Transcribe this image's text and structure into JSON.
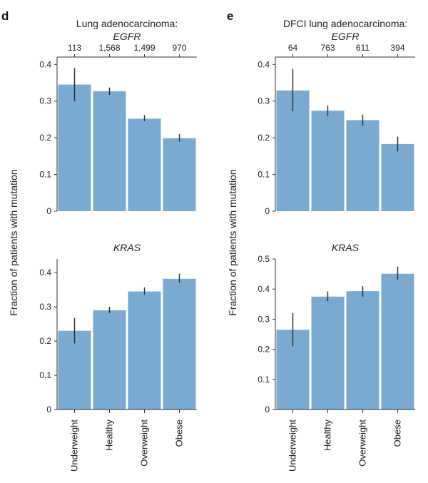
{
  "colors": {
    "bar": "#7aaad0",
    "error_bar": "#2b2b2b",
    "axis": "#333333"
  },
  "figure": {
    "categories": [
      "Underweight",
      "Healthy",
      "Overweight",
      "Obese"
    ],
    "ylabel": "Fraction of patients with mutation"
  },
  "chart_data": [
    {
      "panel": "d",
      "type": "bar",
      "title": "Lung adenocarcinoma:",
      "subtitle": "EGFR",
      "top_axis_counts": [
        "113",
        "1,568",
        "1,499",
        "970"
      ],
      "categories": [
        "Underweight",
        "Healthy",
        "Overweight",
        "Obese"
      ],
      "values": [
        0.345,
        0.327,
        0.252,
        0.199
      ],
      "error_low": [
        0.3,
        0.317,
        0.245,
        0.19
      ],
      "error_high": [
        0.39,
        0.337,
        0.262,
        0.21
      ],
      "ylim": [
        0,
        0.42
      ],
      "yticks": [
        "0",
        "0.1",
        "0.2",
        "0.3",
        "0.4"
      ],
      "ytick_values": [
        0,
        0.1,
        0.2,
        0.3,
        0.4
      ]
    },
    {
      "panel": "e",
      "type": "bar",
      "title": "DFCI lung adenocarcinoma:",
      "subtitle": "EGFR",
      "top_axis_counts": [
        "64",
        "763",
        "611",
        "394"
      ],
      "categories": [
        "Underweight",
        "Healthy",
        "Overweight",
        "Obese"
      ],
      "values": [
        0.329,
        0.274,
        0.248,
        0.183
      ],
      "error_low": [
        0.272,
        0.26,
        0.233,
        0.163
      ],
      "error_high": [
        0.388,
        0.288,
        0.263,
        0.203
      ],
      "ylim": [
        0,
        0.42
      ],
      "yticks": [
        "0",
        "0.1",
        "0.2",
        "0.3",
        "0.4"
      ],
      "ytick_values": [
        0,
        0.1,
        0.2,
        0.3,
        0.4
      ]
    },
    {
      "panel": "d",
      "type": "bar",
      "title": "",
      "subtitle": "KRAS",
      "categories": [
        "Underweight",
        "Healthy",
        "Overweight",
        "Obese"
      ],
      "values": [
        0.23,
        0.29,
        0.345,
        0.382
      ],
      "error_low": [
        0.193,
        0.282,
        0.336,
        0.37
      ],
      "error_high": [
        0.268,
        0.3,
        0.357,
        0.397
      ],
      "ylim": [
        0,
        0.44
      ],
      "yticks": [
        "0",
        "0.1",
        "0.2",
        "0.3",
        "0.4"
      ],
      "ytick_values": [
        0,
        0.1,
        0.2,
        0.3,
        0.4
      ]
    },
    {
      "panel": "e",
      "type": "bar",
      "title": "",
      "subtitle": "KRAS",
      "categories": [
        "Underweight",
        "Healthy",
        "Overweight",
        "Obese"
      ],
      "values": [
        0.265,
        0.375,
        0.393,
        0.451
      ],
      "error_low": [
        0.21,
        0.36,
        0.375,
        0.432
      ],
      "error_high": [
        0.32,
        0.392,
        0.41,
        0.475
      ],
      "ylim": [
        0,
        0.5
      ],
      "yticks": [
        "0",
        "0.1",
        "0.2",
        "0.3",
        "0.4",
        "0.5"
      ],
      "ytick_values": [
        0,
        0.1,
        0.2,
        0.3,
        0.4,
        0.5
      ]
    }
  ]
}
